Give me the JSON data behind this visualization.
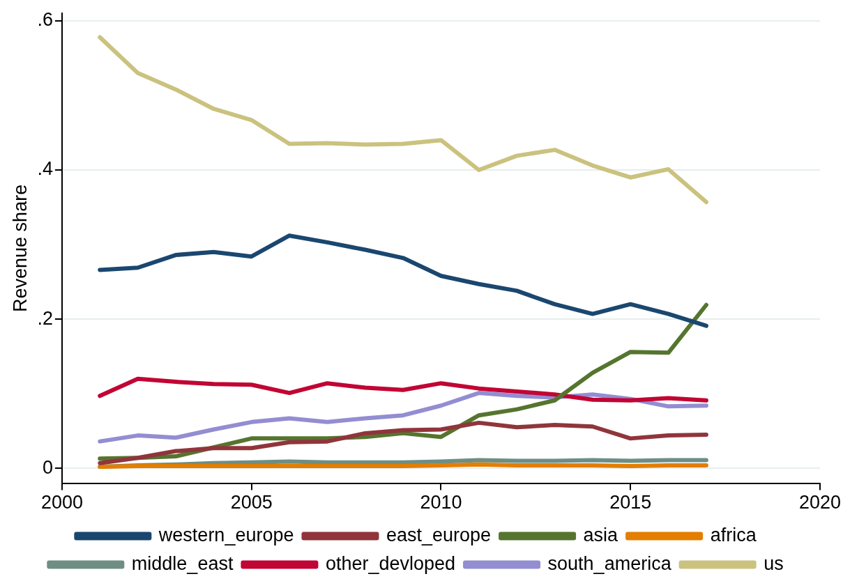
{
  "chart_data": {
    "type": "line",
    "ylabel": "Revenue share",
    "x": [
      2001,
      2002,
      2003,
      2004,
      2005,
      2006,
      2007,
      2008,
      2009,
      2010,
      2011,
      2012,
      2013,
      2014,
      2015,
      2016,
      2017
    ],
    "xlim": [
      2000,
      2020
    ],
    "xticks": [
      2000,
      2005,
      2010,
      2015,
      2020
    ],
    "ylim": [
      -0.02,
      0.61
    ],
    "yticks": [
      0,
      {
        "value": 0.2,
        "label": ".2"
      },
      {
        "value": 0.4,
        "label": ".4"
      },
      {
        "value": 0.6,
        "label": ".6"
      }
    ],
    "grid": "y",
    "legend": "bottom",
    "marker": "none",
    "line_style": "solid",
    "series": [
      {
        "name": "western_europe",
        "color": "#1a476f",
        "values": [
          0.266,
          0.269,
          0.286,
          0.29,
          0.284,
          0.312,
          0.303,
          0.293,
          0.282,
          0.258,
          0.247,
          0.238,
          0.22,
          0.207,
          0.22,
          0.207,
          0.191
        ]
      },
      {
        "name": "east_europe",
        "color": "#90353b",
        "values": [
          0.007,
          0.014,
          0.023,
          0.027,
          0.027,
          0.035,
          0.036,
          0.047,
          0.051,
          0.052,
          0.061,
          0.055,
          0.058,
          0.056,
          0.04,
          0.044,
          0.045
        ]
      },
      {
        "name": "asia",
        "color": "#55752f",
        "values": [
          0.013,
          0.014,
          0.016,
          0.028,
          0.04,
          0.04,
          0.04,
          0.042,
          0.047,
          0.042,
          0.071,
          0.079,
          0.091,
          0.128,
          0.156,
          0.155,
          0.219
        ]
      },
      {
        "name": "africa",
        "color": "#e37e00",
        "values": [
          0.002,
          0.003,
          0.003,
          0.003,
          0.003,
          0.003,
          0.003,
          0.003,
          0.003,
          0.004,
          0.005,
          0.004,
          0.004,
          0.004,
          0.003,
          0.004,
          0.004
        ]
      },
      {
        "name": "middle_east",
        "color": "#6e8e84",
        "values": [
          0.002,
          0.004,
          0.005,
          0.007,
          0.008,
          0.009,
          0.008,
          0.008,
          0.008,
          0.009,
          0.011,
          0.01,
          0.01,
          0.011,
          0.01,
          0.011,
          0.011
        ]
      },
      {
        "name": "other_devloped",
        "color": "#c10534",
        "values": [
          0.097,
          0.12,
          0.116,
          0.113,
          0.112,
          0.101,
          0.114,
          0.108,
          0.105,
          0.114,
          0.107,
          0.103,
          0.099,
          0.092,
          0.091,
          0.094,
          0.091
        ]
      },
      {
        "name": "south_america",
        "color": "#938dd2",
        "values": [
          0.036,
          0.044,
          0.041,
          0.052,
          0.062,
          0.067,
          0.062,
          0.067,
          0.071,
          0.084,
          0.101,
          0.097,
          0.095,
          0.099,
          0.093,
          0.083,
          0.084
        ]
      },
      {
        "name": "us",
        "color": "#cac27e",
        "values": [
          0.578,
          0.53,
          0.508,
          0.482,
          0.467,
          0.435,
          0.436,
          0.434,
          0.435,
          0.44,
          0.4,
          0.419,
          0.427,
          0.406,
          0.39,
          0.401,
          0.357
        ]
      }
    ]
  }
}
